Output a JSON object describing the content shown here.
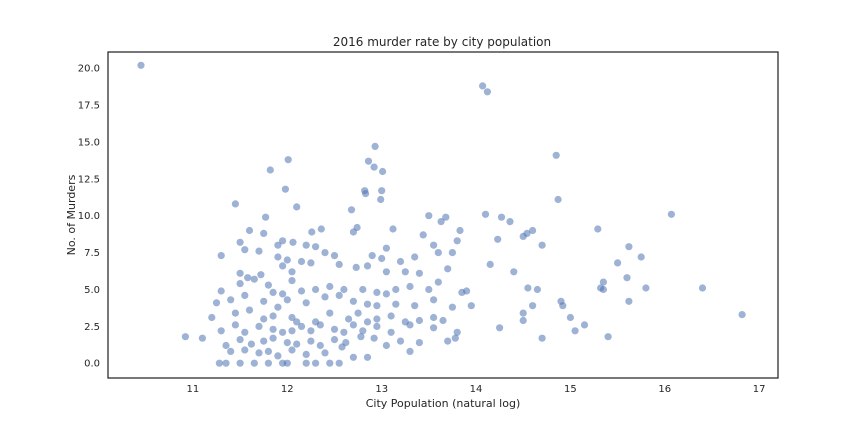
{
  "chart_data": {
    "type": "scatter",
    "title": "2016 murder rate by city population",
    "xlabel": "City Population (natural log)",
    "ylabel": "No. of Murders",
    "xlim": [
      10.1,
      17.2
    ],
    "ylim": [
      -1.0,
      21.1
    ],
    "x_ticks": [
      "11",
      "12",
      "13",
      "14",
      "15",
      "16",
      "17"
    ],
    "y_ticks": [
      "0.0",
      "2.5",
      "5.0",
      "7.5",
      "10.0",
      "12.5",
      "15.0",
      "17.5",
      "20.0"
    ],
    "grid": false,
    "point_color": "#4c72b0",
    "point_opacity": 0.55,
    "points": [
      [
        10.45,
        20.2
      ],
      [
        14.07,
        18.8
      ],
      [
        14.12,
        18.4
      ],
      [
        12.93,
        14.7
      ],
      [
        14.85,
        14.1
      ],
      [
        12.01,
        13.8
      ],
      [
        12.86,
        13.7
      ],
      [
        12.92,
        13.3
      ],
      [
        13.01,
        13.0
      ],
      [
        11.82,
        13.1
      ],
      [
        13.0,
        11.7
      ],
      [
        12.82,
        11.7
      ],
      [
        12.83,
        11.5
      ],
      [
        11.98,
        11.8
      ],
      [
        12.99,
        11.1
      ],
      [
        14.87,
        11.1
      ],
      [
        11.45,
        10.8
      ],
      [
        12.1,
        10.6
      ],
      [
        12.68,
        10.4
      ],
      [
        13.5,
        10.0
      ],
      [
        13.68,
        9.9
      ],
      [
        13.63,
        9.6
      ],
      [
        14.1,
        10.1
      ],
      [
        14.27,
        9.9
      ],
      [
        14.36,
        9.6
      ],
      [
        14.5,
        8.6
      ],
      [
        14.54,
        8.8
      ],
      [
        14.6,
        9.0
      ],
      [
        14.7,
        8.0
      ],
      [
        15.29,
        9.1
      ],
      [
        16.07,
        10.1
      ],
      [
        11.77,
        9.9
      ],
      [
        12.36,
        9.1
      ],
      [
        12.26,
        8.9
      ],
      [
        12.74,
        9.2
      ],
      [
        13.12,
        9.1
      ],
      [
        13.44,
        8.7
      ],
      [
        13.8,
        8.3
      ],
      [
        13.83,
        9.0
      ],
      [
        14.23,
        8.4
      ],
      [
        12.06,
        8.2
      ],
      [
        11.5,
        8.2
      ],
      [
        11.6,
        9.0
      ],
      [
        11.75,
        8.8
      ],
      [
        11.95,
        8.3
      ],
      [
        11.9,
        8.0
      ],
      [
        12.2,
        8.0
      ],
      [
        12.3,
        7.9
      ],
      [
        12.4,
        7.5
      ],
      [
        12.7,
        8.9
      ],
      [
        13.05,
        7.8
      ],
      [
        13.35,
        7.2
      ],
      [
        13.55,
        8.0
      ],
      [
        13.6,
        7.5
      ],
      [
        13.75,
        7.5
      ],
      [
        11.3,
        7.3
      ],
      [
        11.55,
        7.7
      ],
      [
        11.7,
        7.6
      ],
      [
        11.9,
        7.2
      ],
      [
        12.0,
        7.0
      ],
      [
        12.15,
        6.9
      ],
      [
        12.5,
        7.3
      ],
      [
        12.9,
        7.3
      ],
      [
        13.0,
        7.1
      ],
      [
        13.2,
        6.9
      ],
      [
        14.15,
        6.7
      ],
      [
        14.4,
        6.2
      ],
      [
        15.5,
        6.8
      ],
      [
        15.62,
        7.9
      ],
      [
        15.75,
        7.2
      ],
      [
        11.5,
        6.1
      ],
      [
        11.65,
        5.7
      ],
      [
        11.72,
        6.0
      ],
      [
        11.95,
        6.6
      ],
      [
        12.05,
        6.2
      ],
      [
        12.25,
        6.8
      ],
      [
        12.55,
        6.7
      ],
      [
        12.73,
        6.5
      ],
      [
        12.85,
        6.6
      ],
      [
        13.05,
        6.2
      ],
      [
        13.25,
        6.2
      ],
      [
        13.4,
        6.1
      ],
      [
        13.7,
        6.4
      ],
      [
        15.6,
        5.8
      ],
      [
        15.35,
        5.5
      ],
      [
        15.8,
        5.1
      ],
      [
        16.4,
        5.1
      ],
      [
        15.32,
        5.1
      ],
      [
        15.35,
        5.0
      ],
      [
        11.3,
        4.9
      ],
      [
        11.5,
        5.4
      ],
      [
        11.58,
        5.8
      ],
      [
        11.8,
        5.3
      ],
      [
        11.85,
        4.8
      ],
      [
        11.95,
        4.7
      ],
      [
        12.05,
        5.6
      ],
      [
        12.15,
        4.9
      ],
      [
        12.3,
        5.0
      ],
      [
        12.45,
        5.2
      ],
      [
        12.6,
        5.0
      ],
      [
        12.8,
        5.0
      ],
      [
        12.95,
        4.8
      ],
      [
        13.05,
        4.7
      ],
      [
        13.15,
        5.0
      ],
      [
        13.3,
        5.2
      ],
      [
        13.5,
        5.0
      ],
      [
        13.6,
        5.5
      ],
      [
        13.85,
        4.8
      ],
      [
        13.9,
        4.9
      ],
      [
        14.55,
        5.1
      ],
      [
        14.65,
        5.0
      ],
      [
        14.9,
        4.2
      ],
      [
        15.62,
        4.2
      ],
      [
        16.82,
        3.3
      ],
      [
        11.25,
        4.1
      ],
      [
        11.4,
        4.3
      ],
      [
        11.55,
        4.6
      ],
      [
        11.75,
        4.2
      ],
      [
        11.9,
        3.8
      ],
      [
        12.0,
        4.3
      ],
      [
        12.2,
        4.1
      ],
      [
        12.4,
        4.5
      ],
      [
        12.55,
        4.6
      ],
      [
        12.7,
        4.2
      ],
      [
        12.85,
        4.0
      ],
      [
        12.95,
        3.9
      ],
      [
        13.15,
        4.0
      ],
      [
        13.35,
        3.9
      ],
      [
        13.55,
        4.3
      ],
      [
        13.75,
        3.8
      ],
      [
        13.95,
        3.9
      ],
      [
        14.5,
        3.4
      ],
      [
        14.6,
        3.9
      ],
      [
        14.92,
        3.9
      ],
      [
        15.0,
        3.1
      ],
      [
        11.2,
        3.1
      ],
      [
        11.45,
        3.4
      ],
      [
        11.6,
        3.6
      ],
      [
        11.75,
        3.0
      ],
      [
        11.85,
        3.2
      ],
      [
        12.05,
        3.1
      ],
      [
        12.1,
        2.8
      ],
      [
        12.3,
        2.8
      ],
      [
        12.45,
        3.4
      ],
      [
        12.65,
        3.0
      ],
      [
        12.75,
        3.4
      ],
      [
        12.85,
        2.8
      ],
      [
        12.95,
        3.0
      ],
      [
        13.1,
        3.2
      ],
      [
        13.25,
        2.8
      ],
      [
        13.4,
        2.9
      ],
      [
        13.55,
        3.1
      ],
      [
        13.65,
        2.9
      ],
      [
        14.5,
        2.9
      ],
      [
        15.05,
        2.2
      ],
      [
        15.15,
        2.6
      ],
      [
        11.3,
        2.2
      ],
      [
        11.45,
        2.6
      ],
      [
        11.55,
        2.1
      ],
      [
        11.7,
        2.5
      ],
      [
        11.85,
        2.3
      ],
      [
        11.95,
        2.1
      ],
      [
        12.05,
        2.2
      ],
      [
        12.15,
        2.5
      ],
      [
        12.25,
        2.2
      ],
      [
        12.35,
        2.6
      ],
      [
        12.5,
        2.3
      ],
      [
        12.6,
        2.1
      ],
      [
        12.7,
        2.6
      ],
      [
        12.8,
        2.2
      ],
      [
        12.95,
        2.5
      ],
      [
        13.1,
        2.1
      ],
      [
        13.3,
        2.6
      ],
      [
        13.55,
        2.4
      ],
      [
        13.8,
        2.1
      ],
      [
        14.25,
        2.4
      ],
      [
        15.4,
        1.8
      ],
      [
        14.7,
        1.7
      ],
      [
        10.92,
        1.8
      ],
      [
        11.1,
        1.7
      ],
      [
        11.35,
        1.2
      ],
      [
        11.5,
        1.6
      ],
      [
        11.62,
        1.3
      ],
      [
        11.75,
        1.5
      ],
      [
        11.85,
        1.7
      ],
      [
        12.0,
        1.4
      ],
      [
        12.1,
        1.3
      ],
      [
        12.25,
        1.5
      ],
      [
        12.35,
        1.2
      ],
      [
        12.5,
        1.6
      ],
      [
        12.62,
        1.4
      ],
      [
        12.78,
        1.8
      ],
      [
        12.92,
        1.7
      ],
      [
        13.05,
        1.2
      ],
      [
        13.2,
        1.5
      ],
      [
        13.4,
        1.4
      ],
      [
        13.7,
        1.5
      ],
      [
        13.78,
        1.7
      ],
      [
        11.4,
        0.8
      ],
      [
        11.55,
        0.9
      ],
      [
        11.7,
        0.7
      ],
      [
        11.8,
        0.8
      ],
      [
        11.9,
        0.5
      ],
      [
        12.05,
        0.9
      ],
      [
        12.2,
        0.6
      ],
      [
        12.4,
        0.7
      ],
      [
        12.58,
        1.1
      ],
      [
        12.7,
        0.4
      ],
      [
        12.85,
        0.4
      ],
      [
        13.3,
        0.8
      ],
      [
        11.28,
        0.0
      ],
      [
        11.35,
        0.0
      ],
      [
        11.5,
        0.0
      ],
      [
        11.65,
        0.0
      ],
      [
        11.8,
        0.0
      ],
      [
        11.95,
        0.0
      ],
      [
        12.0,
        0.0
      ],
      [
        12.2,
        0.0
      ],
      [
        12.3,
        0.0
      ],
      [
        12.45,
        0.0
      ],
      [
        12.55,
        0.0
      ]
    ]
  }
}
